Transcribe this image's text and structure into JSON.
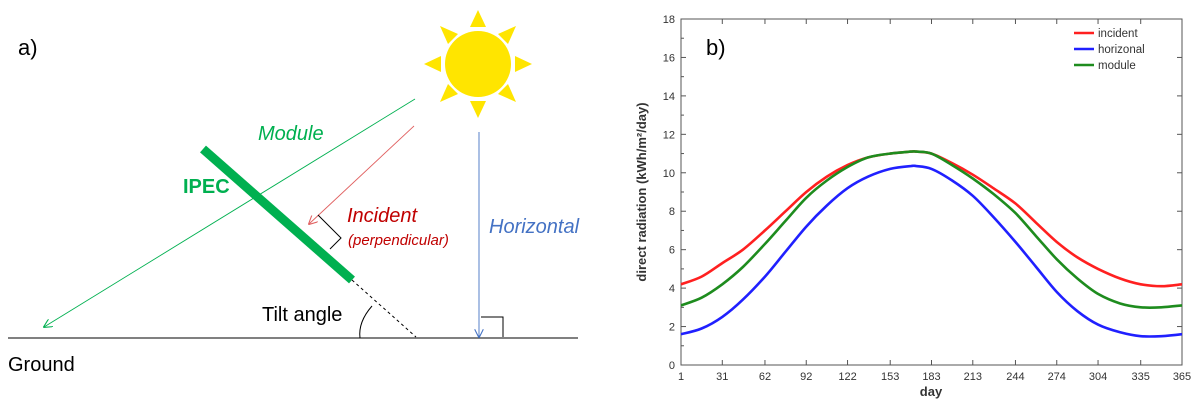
{
  "diagram": {
    "panel_label": "a)",
    "module_label": "Module",
    "ipec_label": "IPEC",
    "incident_label": "Incident",
    "perpendicular_label": "(perpendicular)",
    "horizontal_label": "Horizontal",
    "tilt_label": "Tilt angle",
    "ground_label": "Ground",
    "colors": {
      "sun": "#FFE500",
      "module": "#00B050",
      "incident": "#C00000",
      "horizontal": "#4472C4",
      "ground": "#000000"
    }
  },
  "chart_data": {
    "type": "line",
    "panel_label": "b)",
    "xlabel": "day",
    "ylabel": "direct radiation (kWh/m²/day)",
    "xlim": [
      1,
      365
    ],
    "ylim": [
      0,
      18
    ],
    "xticks": [
      1,
      31,
      62,
      92,
      122,
      153,
      183,
      213,
      244,
      274,
      304,
      335,
      365
    ],
    "yticks": [
      0,
      2,
      4,
      6,
      8,
      10,
      12,
      14,
      16,
      18
    ],
    "legend_position": "top-right",
    "grid": false,
    "x": [
      1,
      16,
      31,
      46,
      62,
      77,
      92,
      107,
      122,
      137,
      153,
      168,
      172,
      183,
      198,
      213,
      228,
      244,
      259,
      274,
      289,
      304,
      320,
      335,
      350,
      365
    ],
    "series": [
      {
        "name": "incident",
        "color": "#FF2020",
        "values": [
          4.2,
          4.6,
          5.3,
          6.0,
          7.0,
          8.0,
          9.0,
          9.8,
          10.4,
          10.8,
          11.0,
          11.1,
          11.1,
          11.0,
          10.5,
          9.9,
          9.2,
          8.4,
          7.4,
          6.4,
          5.6,
          5.0,
          4.5,
          4.2,
          4.1,
          4.2
        ]
      },
      {
        "name": "horizonal",
        "color": "#2020FF",
        "values": [
          1.6,
          1.9,
          2.5,
          3.4,
          4.6,
          5.9,
          7.2,
          8.3,
          9.2,
          9.8,
          10.2,
          10.35,
          10.35,
          10.2,
          9.6,
          8.8,
          7.7,
          6.4,
          5.1,
          3.8,
          2.8,
          2.1,
          1.7,
          1.5,
          1.5,
          1.6
        ]
      },
      {
        "name": "module",
        "color": "#1E8C1E",
        "values": [
          3.1,
          3.5,
          4.2,
          5.1,
          6.3,
          7.5,
          8.7,
          9.6,
          10.3,
          10.8,
          11.0,
          11.1,
          11.1,
          11.0,
          10.4,
          9.7,
          8.9,
          7.9,
          6.7,
          5.5,
          4.5,
          3.7,
          3.2,
          3.0,
          3.0,
          3.1
        ]
      }
    ]
  }
}
